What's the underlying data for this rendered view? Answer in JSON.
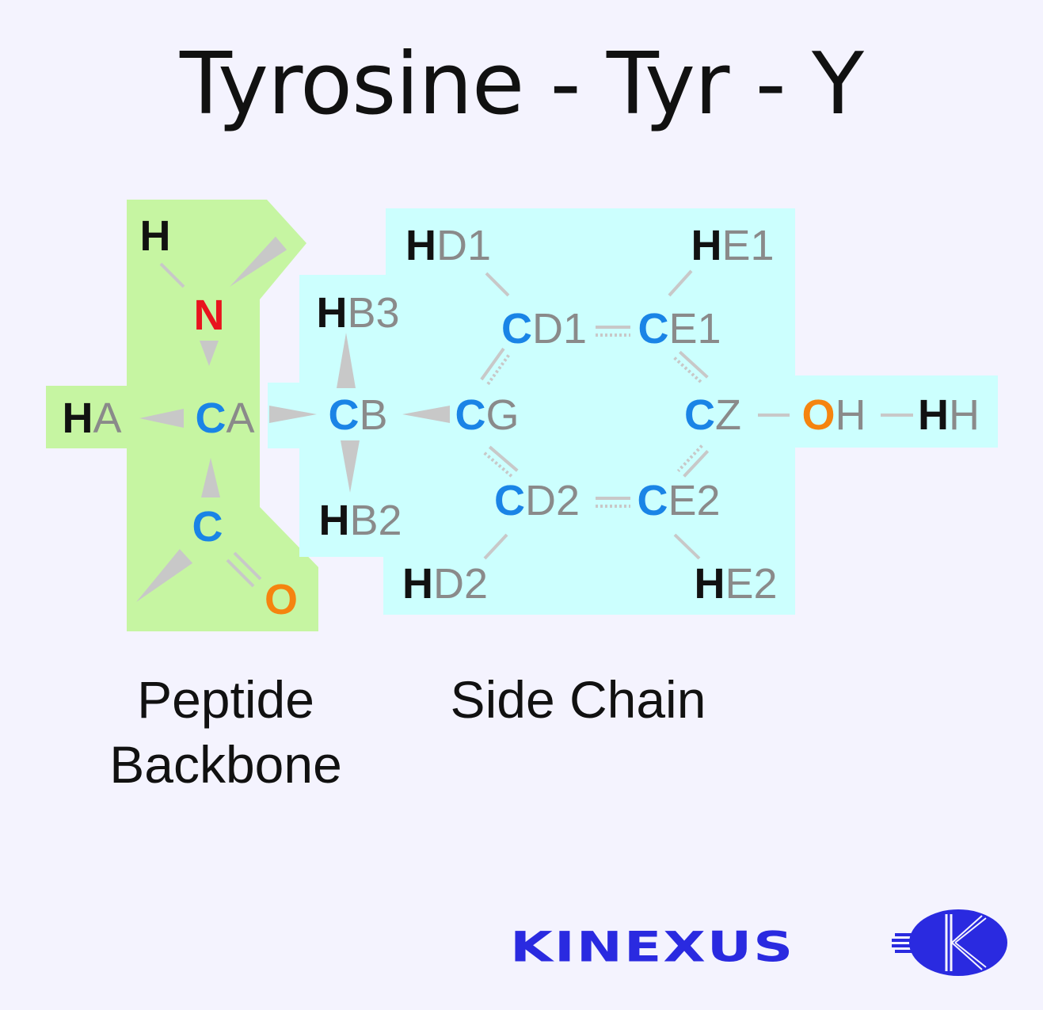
{
  "title": "Tyrosine - Tyr - Y",
  "regions": {
    "backbone": {
      "label_line1": "Peptide",
      "label_line2": "Backbone",
      "color": "#c6f5a2"
    },
    "side_chain": {
      "label": "Side Chain",
      "color": "#ccfffe"
    }
  },
  "atoms": {
    "h": {
      "el": "H",
      "suffix": ""
    },
    "n": {
      "el": "N",
      "suffix": ""
    },
    "ha": {
      "el": "H",
      "suffix": "A"
    },
    "ca": {
      "el": "C",
      "suffix": "A"
    },
    "c": {
      "el": "C",
      "suffix": ""
    },
    "o": {
      "el": "O",
      "suffix": ""
    },
    "cb": {
      "el": "C",
      "suffix": "B"
    },
    "hb3": {
      "el": "H",
      "suffix": "B3"
    },
    "hb2": {
      "el": "H",
      "suffix": "B2"
    },
    "cg": {
      "el": "C",
      "suffix": "G"
    },
    "cd1": {
      "el": "C",
      "suffix": "D1"
    },
    "ce1": {
      "el": "C",
      "suffix": "E1"
    },
    "cd2": {
      "el": "C",
      "suffix": "D2"
    },
    "ce2": {
      "el": "C",
      "suffix": "E2"
    },
    "hd1": {
      "el": "H",
      "suffix": "D1"
    },
    "he1": {
      "el": "H",
      "suffix": "E1"
    },
    "hd2": {
      "el": "H",
      "suffix": "D2"
    },
    "he2": {
      "el": "H",
      "suffix": "E2"
    },
    "cz": {
      "el": "C",
      "suffix": "Z"
    },
    "oh": {
      "el": "O",
      "suffix": "H"
    },
    "hh": {
      "el": "H",
      "suffix": "H"
    }
  },
  "element_colors": {
    "H": "#111111",
    "C": "#1a84e6",
    "N": "#e8141e",
    "O": "#f5840f"
  },
  "logo": {
    "text": "KINEXUS",
    "color": "#2a2ae0"
  }
}
